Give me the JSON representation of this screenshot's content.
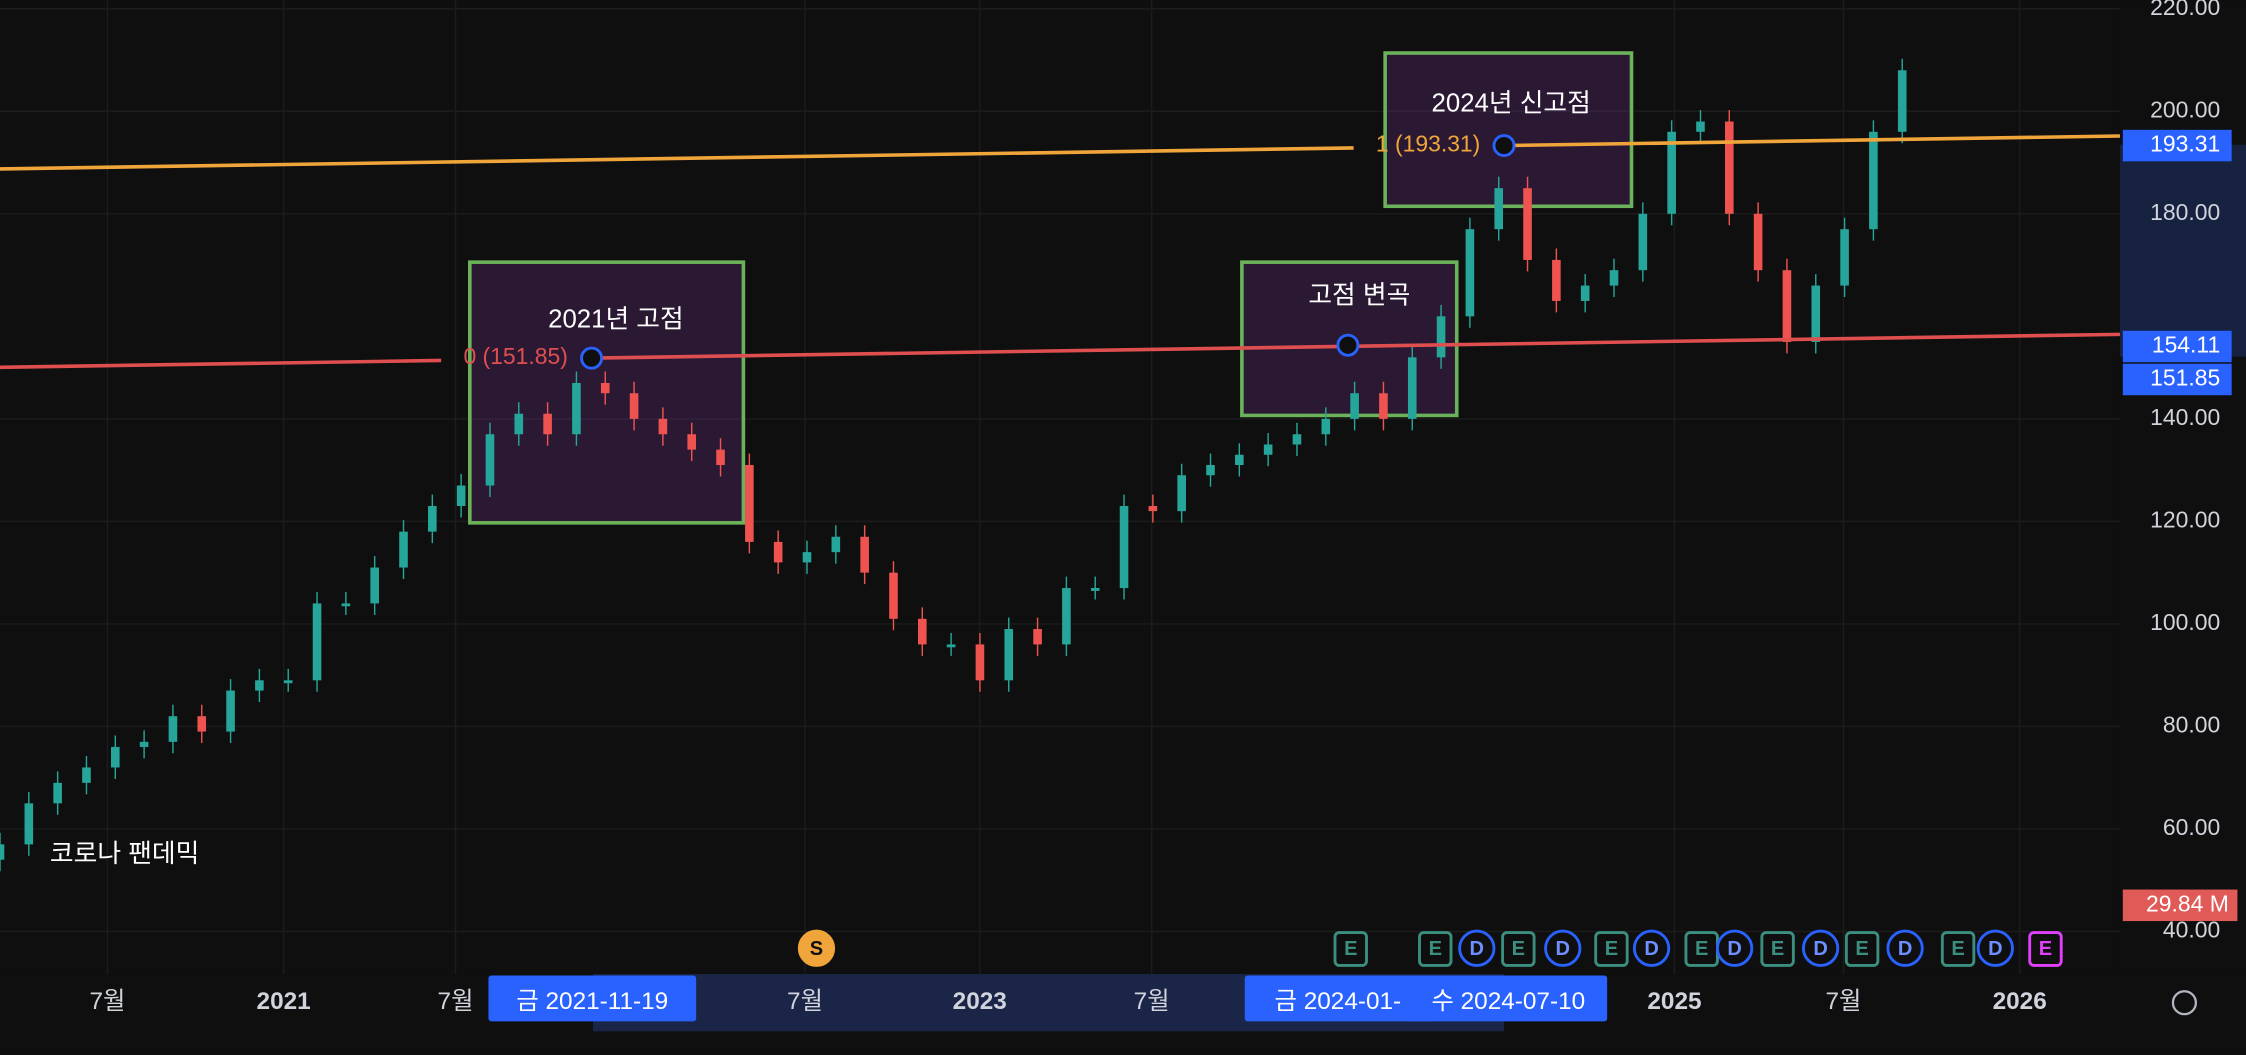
{
  "chart_data": {
    "type": "candle",
    "values": [
      57,
      65,
      69,
      72,
      76,
      77,
      82,
      79,
      87,
      89,
      89,
      104,
      104,
      111,
      118,
      123,
      127,
      137,
      141,
      137,
      147,
      145,
      140,
      137,
      134,
      131,
      116,
      112,
      114,
      117,
      110,
      101,
      96,
      96,
      89,
      99,
      96,
      107,
      107,
      123,
      122,
      129,
      131,
      133,
      135,
      137,
      140,
      145,
      140,
      152,
      160,
      177,
      185,
      171,
      163,
      166,
      169,
      180,
      196,
      198,
      180,
      169,
      155,
      166,
      177,
      196,
      208
    ],
    "up_color": "#26a69a",
    "down_color": "#ef5350",
    "ylim": [
      31.7,
      221.7
    ],
    "yticks": [
      {
        "value": 220,
        "label": "220.00"
      },
      {
        "value": 200,
        "label": "200.00"
      },
      {
        "value": 180,
        "label": "180.00"
      },
      {
        "value": 140,
        "label": "140.00"
      },
      {
        "value": 120,
        "label": "120.00"
      },
      {
        "value": 100,
        "label": "100.00"
      },
      {
        "value": 80,
        "label": "80.00"
      },
      {
        "value": 60,
        "label": "60.00"
      },
      {
        "value": 40,
        "label": "40.00"
      }
    ],
    "x_labels": [
      "7월",
      "2021",
      "7월",
      "금 2021-11-19",
      "7월",
      "2023",
      "7월",
      "금 2024-01-",
      "수 2024-07-10",
      "2025",
      "7월",
      "2026"
    ],
    "levels": [
      {
        "label": "0 (151.85)",
        "value": 151.85,
        "color": "#e04f4f"
      },
      {
        "label": "1 (193.31)",
        "value": 193.31,
        "color": "#f0a53a"
      }
    ],
    "price_labels": [
      {
        "label": "193.31",
        "value": 193.31,
        "color": "#2962ff"
      },
      {
        "label": "154.11",
        "value": 154.11,
        "color": "#2962ff"
      },
      {
        "label": "151.85",
        "value": 151.85,
        "color": "#2962ff"
      }
    ],
    "volume_label": "29.84 M",
    "annotations": [
      "2021년 고점",
      "고점 변곡",
      "2024년 신고점",
      "코로나 팬데믹"
    ],
    "events": [
      "S",
      "E",
      "E",
      "D",
      "E",
      "D",
      "E",
      "D",
      "E",
      "D",
      "E",
      "D",
      "E",
      "D",
      "E",
      "D",
      "E"
    ]
  }
}
